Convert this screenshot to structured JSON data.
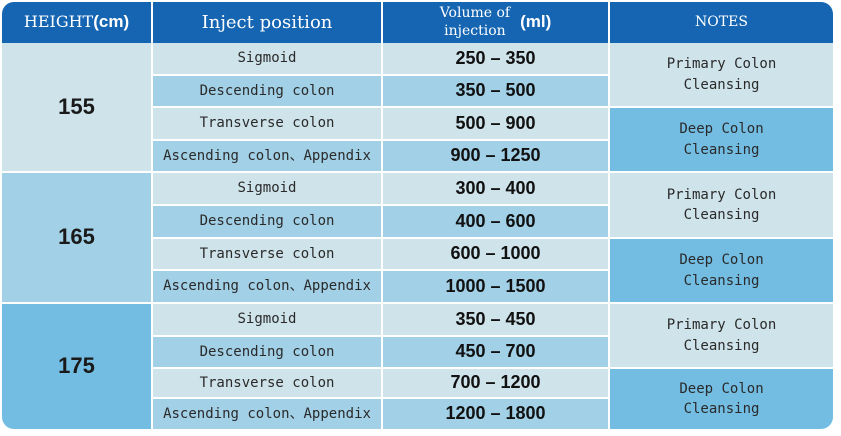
{
  "header": {
    "height_label": "HEIGHT",
    "height_unit": "(cm)",
    "position_label": "Inject position",
    "volume_label_line1": "Volume of",
    "volume_label_line2": "injection",
    "volume_unit": "(ml)",
    "notes_label": "NOTES"
  },
  "groups": [
    {
      "height": "155",
      "rows": [
        {
          "position": "Sigmoid",
          "volume": "250 – 350"
        },
        {
          "position": "Descending colon",
          "volume": "350 – 500"
        },
        {
          "position": "Transverse colon",
          "volume": "500 – 900"
        },
        {
          "position": "Ascending colon、Appendix",
          "volume": "900 – 1250"
        }
      ],
      "notes": [
        {
          "line1": "Primary Colon",
          "line2": "Cleansing"
        },
        {
          "line1": "Deep Colon",
          "line2": "Cleansing"
        }
      ]
    },
    {
      "height": "165",
      "rows": [
        {
          "position": "Sigmoid",
          "volume": "300 – 400"
        },
        {
          "position": "Descending colon",
          "volume": "400 – 600"
        },
        {
          "position": "Transverse colon",
          "volume": "600 – 1000"
        },
        {
          "position": "Ascending colon、Appendix",
          "volume": "1000 – 1500"
        }
      ],
      "notes": [
        {
          "line1": "Primary Colon",
          "line2": "Cleansing"
        },
        {
          "line1": "Deep Colon",
          "line2": "Cleansing"
        }
      ]
    },
    {
      "height": "175",
      "rows": [
        {
          "position": "Sigmoid",
          "volume": "350 – 450"
        },
        {
          "position": "Descending colon",
          "volume": "450 – 700"
        },
        {
          "position": "Transverse colon",
          "volume": "700 – 1200"
        },
        {
          "position": "Ascending colon、Appendix",
          "volume": "1200 – 1800"
        }
      ],
      "notes": [
        {
          "line1": "Primary Colon",
          "line2": "Cleansing"
        },
        {
          "line1": "Deep Colon",
          "line2": "Cleansing"
        }
      ]
    }
  ],
  "colors": {
    "header": "#1565b2",
    "light": "#cfe3ea",
    "mid": "#a2d0e6",
    "blue": "#73bde3"
  }
}
